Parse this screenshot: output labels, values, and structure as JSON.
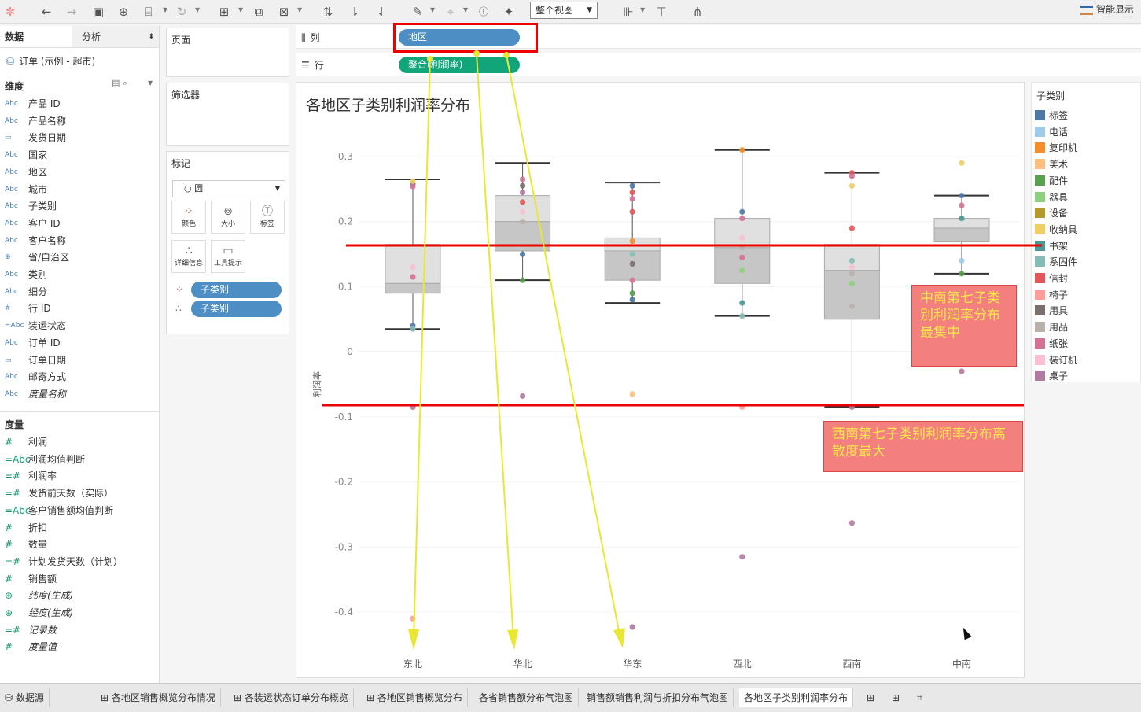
{
  "toolbar": {
    "view_mode": "整个视图",
    "smart_show": "智能显示",
    "icons": [
      "tableau-logo-icon",
      "undo-icon",
      "redo-icon",
      "save-icon",
      "new-datasource-icon",
      "datasource-icon",
      "refresh-icon",
      "new-worksheet-icon",
      "duplicate-icon",
      "clear-sheet-icon",
      "swap-icon",
      "sort-asc-icon",
      "sort-desc-icon",
      "highlight-icon",
      "group-icon",
      "label-icon",
      "pin-icon",
      "show-me-icon",
      "presentation-icon",
      "share-icon"
    ]
  },
  "data_pane": {
    "tab_data": "数据",
    "tab_analysis": "分析",
    "datasource": "订单 (示例 - 超市)",
    "dimensions_header": "维度",
    "dimensions": [
      {
        "type": "Abc",
        "name": "产品 ID"
      },
      {
        "type": "Abc",
        "name": "产品名称"
      },
      {
        "type": "date",
        "name": "发货日期"
      },
      {
        "type": "Abc",
        "name": "国家"
      },
      {
        "type": "Abc",
        "name": "地区"
      },
      {
        "type": "Abc",
        "name": "城市"
      },
      {
        "type": "Abc",
        "name": "子类别"
      },
      {
        "type": "Abc",
        "name": "客户 ID"
      },
      {
        "type": "Abc",
        "name": "客户名称"
      },
      {
        "type": "geo",
        "name": "省/自治区"
      },
      {
        "type": "Abc",
        "name": "类别"
      },
      {
        "type": "Abc",
        "name": "细分"
      },
      {
        "type": "#",
        "name": "行 ID"
      },
      {
        "type": "=Abc",
        "name": "装运状态"
      },
      {
        "type": "Abc",
        "name": "订单 ID"
      },
      {
        "type": "date",
        "name": "订单日期"
      },
      {
        "type": "Abc",
        "name": "邮寄方式"
      },
      {
        "type": "Abc",
        "name": "度量名称",
        "italic": true
      }
    ],
    "measures_header": "度量",
    "measures": [
      {
        "type": "#",
        "name": "利润"
      },
      {
        "type": "=Abc",
        "name": "利润均值判断"
      },
      {
        "type": "=#",
        "name": "利润率"
      },
      {
        "type": "=#",
        "name": "发货前天数（实际）"
      },
      {
        "type": "=Abc",
        "name": "客户销售额均值判断"
      },
      {
        "type": "#",
        "name": "折扣"
      },
      {
        "type": "#",
        "name": "数量"
      },
      {
        "type": "=#",
        "name": "计划发货天数（计划）"
      },
      {
        "type": "#",
        "name": "销售额"
      },
      {
        "type": "geo",
        "name": "纬度(生成)",
        "italic": true
      },
      {
        "type": "geo",
        "name": "经度(生成)",
        "italic": true
      },
      {
        "type": "=#",
        "name": "记录数",
        "italic": true
      },
      {
        "type": "#",
        "name": "度量值",
        "italic": true
      }
    ]
  },
  "shelves": {
    "pages": "页面",
    "filters": "筛选器",
    "marks": "标记",
    "mark_type": "圆",
    "mark_buttons": [
      "颜色",
      "大小",
      "标签",
      "详细信息",
      "工具提示"
    ],
    "mark_pills": [
      "子类别",
      "子类别"
    ],
    "columns_label": "列",
    "columns_pill": "地区",
    "rows_label": "行",
    "rows_pill": "聚合(利润率)"
  },
  "chart_data": {
    "type": "boxplot",
    "title": "各地区子类别利润率分布",
    "ylabel": "利润率",
    "ylim": [
      -0.45,
      0.32
    ],
    "yticks": [
      0.3,
      0.2,
      0.1,
      0.0,
      -0.1,
      -0.2,
      -0.3,
      -0.4
    ],
    "categories": [
      "东北",
      "华北",
      "华东",
      "西北",
      "西南",
      "中南"
    ],
    "boxes": [
      {
        "whisker_high": 0.265,
        "q3": 0.165,
        "median": 0.105,
        "q1": 0.09,
        "whisker_low": 0.035
      },
      {
        "whisker_high": 0.29,
        "q3": 0.24,
        "median": 0.2,
        "q1": 0.155,
        "whisker_low": 0.11
      },
      {
        "whisker_high": 0.26,
        "q3": 0.175,
        "median": 0.155,
        "q1": 0.11,
        "whisker_low": 0.075
      },
      {
        "whisker_high": 0.31,
        "q3": 0.205,
        "median": 0.16,
        "q1": 0.105,
        "whisker_low": 0.055
      },
      {
        "whisker_high": 0.275,
        "q3": 0.165,
        "median": 0.125,
        "q1": 0.05,
        "whisker_low": -0.085
      },
      {
        "whisker_high": 0.24,
        "q3": 0.205,
        "median": 0.19,
        "q1": 0.17,
        "whisker_low": 0.12
      }
    ],
    "points": [
      {
        "x": "东北",
        "y": 0.258,
        "c": "#4e79a7"
      },
      {
        "x": "东北",
        "y": 0.254,
        "c": "#d37295"
      },
      {
        "x": "东北",
        "y": 0.262,
        "c": "#f1ce63"
      },
      {
        "x": "东北",
        "y": 0.13,
        "c": "#fabfd2"
      },
      {
        "x": "东北",
        "y": 0.115,
        "c": "#d37295"
      },
      {
        "x": "东北",
        "y": 0.04,
        "c": "#4e79a7"
      },
      {
        "x": "东北",
        "y": 0.035,
        "c": "#86bcb6"
      },
      {
        "x": "东北",
        "y": -0.085,
        "c": "#b07aa1"
      },
      {
        "x": "东北",
        "y": -0.41,
        "c": "#ff9d9a"
      },
      {
        "x": "华北",
        "y": 0.265,
        "c": "#d37295"
      },
      {
        "x": "华北",
        "y": 0.255,
        "c": "#79706e"
      },
      {
        "x": "华北",
        "y": 0.245,
        "c": "#b07aa1"
      },
      {
        "x": "华北",
        "y": 0.23,
        "c": "#e15759"
      },
      {
        "x": "华北",
        "y": 0.215,
        "c": "#fabfd2"
      },
      {
        "x": "华北",
        "y": 0.2,
        "c": "#bab0ac"
      },
      {
        "x": "华北",
        "y": 0.15,
        "c": "#4e79a7"
      },
      {
        "x": "华北",
        "y": 0.11,
        "c": "#59a14f"
      },
      {
        "x": "华北",
        "y": -0.068,
        "c": "#b07aa1"
      },
      {
        "x": "华东",
        "y": 0.255,
        "c": "#4e79a7"
      },
      {
        "x": "华东",
        "y": 0.245,
        "c": "#e15759"
      },
      {
        "x": "华东",
        "y": 0.235,
        "c": "#d37295"
      },
      {
        "x": "华东",
        "y": 0.215,
        "c": "#e15759"
      },
      {
        "x": "华东",
        "y": 0.17,
        "c": "#f28e2b"
      },
      {
        "x": "华东",
        "y": 0.15,
        "c": "#86bcb6"
      },
      {
        "x": "华东",
        "y": 0.135,
        "c": "#79706e"
      },
      {
        "x": "华东",
        "y": 0.11,
        "c": "#d37295"
      },
      {
        "x": "华东",
        "y": 0.09,
        "c": "#59a14f"
      },
      {
        "x": "华东",
        "y": 0.08,
        "c": "#4e79a7"
      },
      {
        "x": "华东",
        "y": -0.065,
        "c": "#ffbe7d"
      },
      {
        "x": "华东",
        "y": -0.423,
        "c": "#b07aa1"
      },
      {
        "x": "西北",
        "y": 0.31,
        "c": "#f28e2b"
      },
      {
        "x": "西北",
        "y": 0.215,
        "c": "#4e79a7"
      },
      {
        "x": "西北",
        "y": 0.205,
        "c": "#d37295"
      },
      {
        "x": "西北",
        "y": 0.175,
        "c": "#fabfd2"
      },
      {
        "x": "西北",
        "y": 0.16,
        "c": "#bab0ac"
      },
      {
        "x": "西北",
        "y": 0.145,
        "c": "#d37295"
      },
      {
        "x": "西北",
        "y": 0.125,
        "c": "#8cd17d"
      },
      {
        "x": "西北",
        "y": 0.075,
        "c": "#499894"
      },
      {
        "x": "西北",
        "y": 0.055,
        "c": "#86bcb6"
      },
      {
        "x": "西北",
        "y": -0.085,
        "c": "#ff9d9a"
      },
      {
        "x": "西北",
        "y": -0.315,
        "c": "#b07aa1"
      },
      {
        "x": "西南",
        "y": 0.275,
        "c": "#e15759"
      },
      {
        "x": "西南",
        "y": 0.27,
        "c": "#d37295"
      },
      {
        "x": "西南",
        "y": 0.255,
        "c": "#f1ce63"
      },
      {
        "x": "西南",
        "y": 0.19,
        "c": "#e15759"
      },
      {
        "x": "西南",
        "y": 0.14,
        "c": "#86bcb6"
      },
      {
        "x": "西南",
        "y": 0.13,
        "c": "#fabfd2"
      },
      {
        "x": "西南",
        "y": 0.12,
        "c": "#bab0ac"
      },
      {
        "x": "西南",
        "y": 0.105,
        "c": "#8cd17d"
      },
      {
        "x": "西南",
        "y": 0.07,
        "c": "#bab0ac"
      },
      {
        "x": "西南",
        "y": -0.085,
        "c": "#b07aa1"
      },
      {
        "x": "西南",
        "y": -0.263,
        "c": "#b07aa1"
      },
      {
        "x": "中南",
        "y": 0.29,
        "c": "#f1ce63"
      },
      {
        "x": "中南",
        "y": 0.24,
        "c": "#4e79a7"
      },
      {
        "x": "中南",
        "y": 0.225,
        "c": "#d37295"
      },
      {
        "x": "中南",
        "y": 0.205,
        "c": "#499894"
      },
      {
        "x": "中南",
        "y": 0.14,
        "c": "#a0cbe8"
      },
      {
        "x": "中南",
        "y": 0.12,
        "c": "#59a14f"
      },
      {
        "x": "中南",
        "y": -0.03,
        "c": "#b07aa1"
      }
    ]
  },
  "legend": {
    "title": "子类别",
    "items": [
      {
        "label": "标签",
        "color": "#4e79a7"
      },
      {
        "label": "电话",
        "color": "#a0cbe8"
      },
      {
        "label": "复印机",
        "color": "#f28e2b"
      },
      {
        "label": "美术",
        "color": "#ffbe7d"
      },
      {
        "label": "配件",
        "color": "#59a14f"
      },
      {
        "label": "器具",
        "color": "#8cd17d"
      },
      {
        "label": "设备",
        "color": "#b6992d"
      },
      {
        "label": "收纳具",
        "color": "#f1ce63"
      },
      {
        "label": "书架",
        "color": "#499894"
      },
      {
        "label": "系固件",
        "color": "#86bcb6"
      },
      {
        "label": "信封",
        "color": "#e15759"
      },
      {
        "label": "椅子",
        "color": "#ff9d9a"
      },
      {
        "label": "用具",
        "color": "#79706e"
      },
      {
        "label": "用品",
        "color": "#bab0ac"
      },
      {
        "label": "纸张",
        "color": "#d37295"
      },
      {
        "label": "装订机",
        "color": "#fabfd2"
      },
      {
        "label": "桌子",
        "color": "#b07aa1"
      }
    ]
  },
  "annotations": {
    "zhongnan": "中南第七子类别利润率分布最集中",
    "xinan": "西南第七子类别利润率分布离散度最大"
  },
  "tabs": {
    "datasource": "数据源",
    "sheets": [
      "各地区销售概览分布情况",
      "各装运状态订单分布概览",
      "各地区销售概览分布",
      "各省销售额分布气泡图",
      "销售额销售利润与折扣分布气泡图",
      "各地区子类别利润率分布"
    ],
    "active_index": 5
  }
}
